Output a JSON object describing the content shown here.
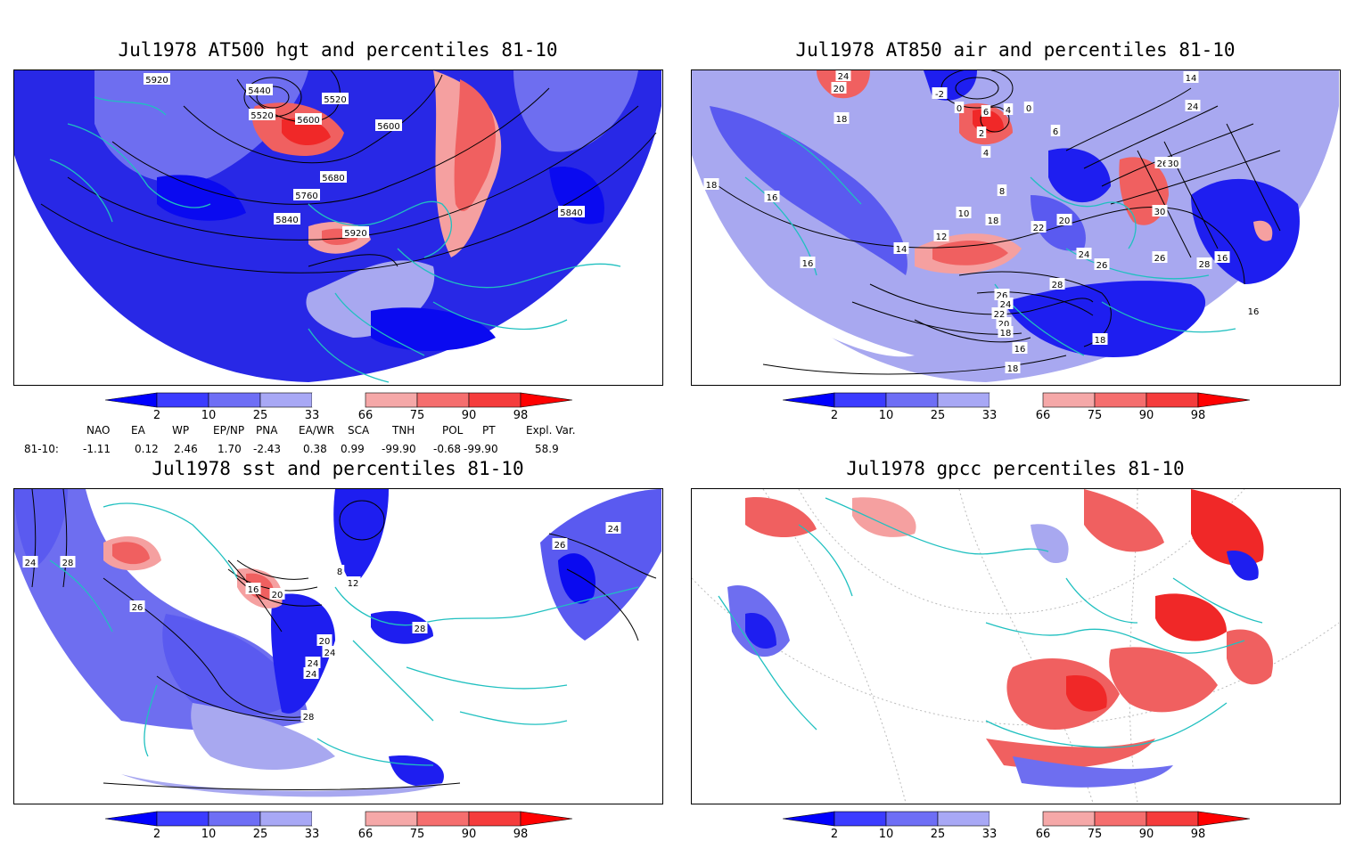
{
  "panels": [
    {
      "title": "Jul1978 AT500 hgt and percentiles 81-10",
      "contour_labels": [
        "5920",
        "5440",
        "5520",
        "5600",
        "5520",
        "5600",
        "5680",
        "5760",
        "5840",
        "5920",
        "5840"
      ]
    },
    {
      "title": "Jul1978 AT850 air and percentiles 81-10",
      "contour_labels": [
        "24",
        "20",
        "18",
        "-2",
        "0",
        "6",
        "4",
        "2",
        "0",
        "4",
        "6",
        "8",
        "10",
        "12",
        "14",
        "16",
        "16",
        "18",
        "16",
        "18",
        "20",
        "22",
        "24",
        "26",
        "28",
        "26",
        "24",
        "22",
        "20",
        "18",
        "16",
        "14",
        "24",
        "26",
        "30",
        "30",
        "26",
        "28",
        "18",
        "18",
        "16"
      ]
    },
    {
      "title": "Jul1978 sst and percentiles 81-10",
      "contour_labels": [
        "24",
        "28",
        "26",
        "8",
        "12",
        "16",
        "20",
        "20",
        "24",
        "24",
        "24",
        "28",
        "28",
        "26",
        "24"
      ]
    },
    {
      "title": "Jul1978 gpcc percentiles 81-10",
      "contour_labels": []
    }
  ],
  "colorbar": {
    "labels": [
      "2",
      "10",
      "25",
      "33",
      "66",
      "75",
      "90",
      "98"
    ],
    "colors": [
      "#0000ff",
      "#3c3cff",
      "#6e6ef5",
      "#a8a8f5",
      "#ffffff",
      "#f5a8a8",
      "#f56e6e",
      "#f53c3c",
      "#ff0000"
    ]
  },
  "indices": {
    "headers": [
      "NAO",
      "EA",
      "WP",
      "EP/NP",
      "PNA",
      "EA/WR",
      "SCA",
      "TNH",
      "POL",
      "PT",
      "Expl. Var."
    ],
    "row_label": "81-10:",
    "values": [
      "-1.11",
      "0.12",
      "2.46",
      "1.70",
      "-2.43",
      "0.38",
      "0.99",
      "-99.90",
      "-0.68",
      "-99.90",
      "58.9"
    ]
  },
  "colors": {
    "coast": "#20c0c0",
    "blue_strong": "#1e1ef0",
    "blue_mid": "#5a5af0",
    "blue_light": "#a0a0f0",
    "red_light": "#f5a0a0",
    "red_mid": "#f06060",
    "red_strong": "#f02828"
  }
}
